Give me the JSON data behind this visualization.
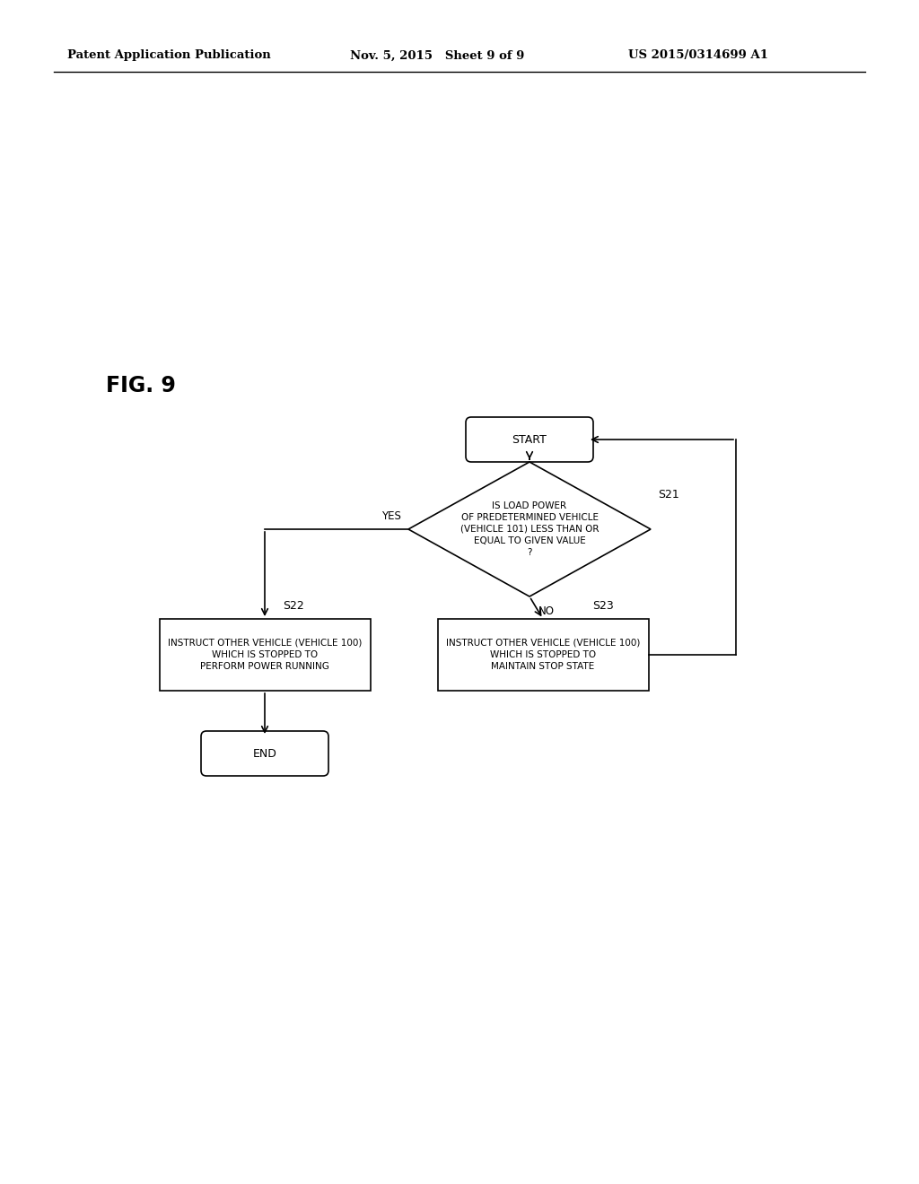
{
  "background_color": "#ffffff",
  "header_left": "Patent Application Publication",
  "header_mid": "Nov. 5, 2015   Sheet 9 of 9",
  "header_right": "US 2015/0314699 A1",
  "fig_label": "FIG. 9",
  "start_label": "START",
  "end_label": "END",
  "diamond_text": "IS LOAD POWER\nOF PREDETERMINED VEHICLE\n(VEHICLE 101) LESS THAN OR\nEQUAL TO GIVEN VALUE\n?",
  "s22_text": "INSTRUCT OTHER VEHICLE (VEHICLE 100)\nWHICH IS STOPPED TO\nPERFORM POWER RUNNING",
  "s23_text": "INSTRUCT OTHER VEHICLE (VEHICLE 100)\nWHICH IS STOPPED TO\nMAINTAIN STOP STATE",
  "label_S21": "S21",
  "label_S22": "S22",
  "label_S23": "S23",
  "label_YES": "YES",
  "label_NO": "NO"
}
